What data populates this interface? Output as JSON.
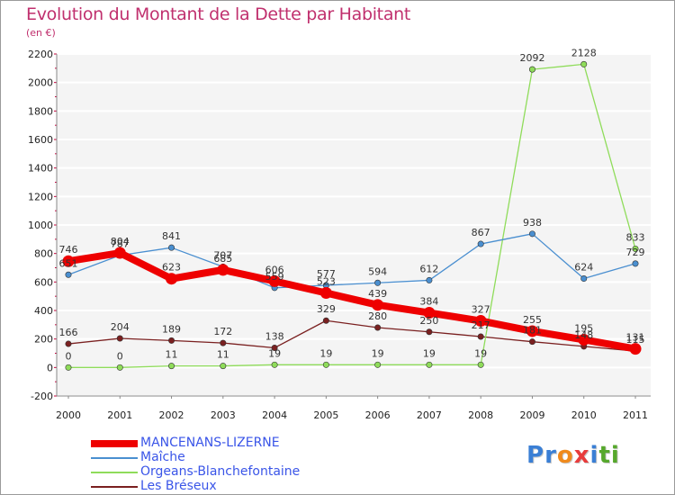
{
  "header": {
    "title": "Evolution du Montant de la Dette par Habitant",
    "subtitle": "(en €)"
  },
  "brand": {
    "chars": [
      "P",
      "r",
      "o",
      "x",
      "i",
      "t",
      "i"
    ],
    "colors": [
      "#3a7fd5",
      "#3a7fd5",
      "#f08a1c",
      "#e83c3c",
      "#3a7fd5",
      "#56a82c",
      "#56a82c"
    ]
  },
  "chart_data": {
    "type": "line",
    "title": "Evolution du Montant de la Dette par Habitant",
    "ylabel": "(en €)",
    "xlabel": "",
    "x": [
      "2000",
      "2001",
      "2002",
      "2003",
      "2004",
      "2005",
      "2006",
      "2007",
      "2008",
      "2009",
      "2010",
      "2011"
    ],
    "ylim": [
      -200,
      2200
    ],
    "yticks": [
      "-200",
      "0",
      "200",
      "400",
      "600",
      "800",
      "1000",
      "1200",
      "1400",
      "1600",
      "1800",
      "2000",
      "2200"
    ],
    "grid": "horizontal",
    "legend_position": "bottom-left",
    "series": [
      {
        "name": "MANCENANS-LIZERNE",
        "color": "#ee0000",
        "values": [
          746,
          804,
          623,
          685,
          606,
          523,
          439,
          384,
          327,
          255,
          195,
          131
        ],
        "labels": [
          "746",
          "804",
          "623",
          "685",
          "606",
          "523",
          "439",
          "384",
          "327",
          "255",
          "195",
          "131"
        ]
      },
      {
        "name": "Maîche",
        "color": "#4a8fd0",
        "values": [
          651,
          787,
          841,
          707,
          559,
          577,
          594,
          612,
          867,
          938,
          624,
          729
        ],
        "labels": [
          "651",
          "787",
          "841",
          "707",
          "559",
          "577",
          "594",
          "612",
          "867",
          "938",
          "624",
          "729"
        ]
      },
      {
        "name": "Orgeans-Blanchefontaine",
        "color": "#8fdc5a",
        "values": [
          0,
          0,
          11,
          11,
          19,
          19,
          19,
          19,
          19,
          2092,
          2128,
          833
        ],
        "labels": [
          "0",
          "0",
          "11",
          "11",
          "19",
          "19",
          "19",
          "19",
          "19",
          "2092",
          "2128",
          "833"
        ]
      },
      {
        "name": "Les Bréseux",
        "color": "#7a2020",
        "values": [
          166,
          204,
          189,
          172,
          138,
          329,
          280,
          250,
          217,
          181,
          148,
          115
        ],
        "labels": [
          "166",
          "204",
          "189",
          "172",
          "138",
          "329",
          "280",
          "250",
          "217",
          "181",
          "148",
          "115"
        ]
      }
    ]
  }
}
